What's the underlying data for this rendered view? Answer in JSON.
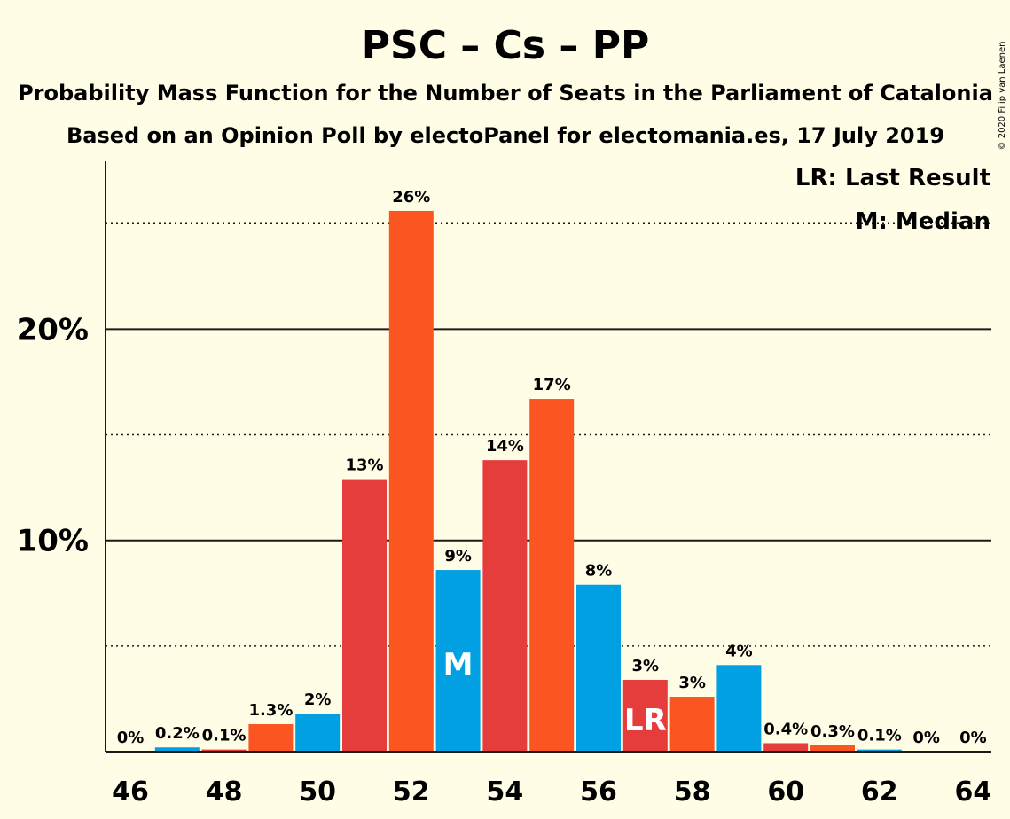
{
  "chart_data": {
    "type": "bar",
    "title": "PSC – Cs – PP",
    "subtitle_1": "Probability Mass Function for the Number of Seats in the Parliament of Catalonia",
    "subtitle_2": "Based on an Opinion Poll by electoPanel for electomania.es, 17 July 2019",
    "copyright": "© 2020 Filip van Laenen",
    "legend": {
      "lr": "LR: Last Result",
      "m": "M: Median",
      "placement": "top-right"
    },
    "x": [
      46,
      47,
      48,
      49,
      50,
      51,
      52,
      53,
      54,
      55,
      56,
      57,
      58,
      59,
      60,
      61,
      62,
      63,
      64
    ],
    "values": [
      0.0,
      0.2,
      0.1,
      1.3,
      1.8,
      12.9,
      25.6,
      8.6,
      13.8,
      16.7,
      7.9,
      3.4,
      2.6,
      4.1,
      0.4,
      0.3,
      0.1,
      0.0,
      0.0
    ],
    "labels": [
      "0%",
      "0.2%",
      "0.1%",
      "1.3%",
      "2%",
      "13%",
      "26%",
      "9%",
      "14%",
      "17%",
      "8%",
      "3%",
      "3%",
      "4%",
      "0.4%",
      "0.3%",
      "0.1%",
      "0%",
      "0%"
    ],
    "xtick_labels": [
      "46",
      "48",
      "50",
      "52",
      "54",
      "56",
      "58",
      "60",
      "62",
      "64"
    ],
    "xticks": [
      46,
      48,
      50,
      52,
      54,
      56,
      58,
      60,
      62,
      64
    ],
    "yticks": [
      10,
      20
    ],
    "ytick_labels": [
      "10%",
      "20%"
    ],
    "minor_gridlines": [
      5,
      15,
      25
    ],
    "ylim": [
      0,
      28
    ],
    "median_seat": 53,
    "median_marker": "M",
    "last_result_seat": 57,
    "last_result_marker": "LR",
    "colors": {
      "background": "#fffde6",
      "red": "#e53c3c",
      "orange": "#fb5522",
      "blue": "#00a0e3",
      "text": "#1a1a1a"
    },
    "bar_colors": [
      "blue",
      "blue",
      "red",
      "orange",
      "blue",
      "red",
      "orange",
      "blue",
      "red",
      "orange",
      "blue",
      "red",
      "orange",
      "blue",
      "red",
      "orange",
      "blue",
      "red",
      "orange"
    ]
  }
}
